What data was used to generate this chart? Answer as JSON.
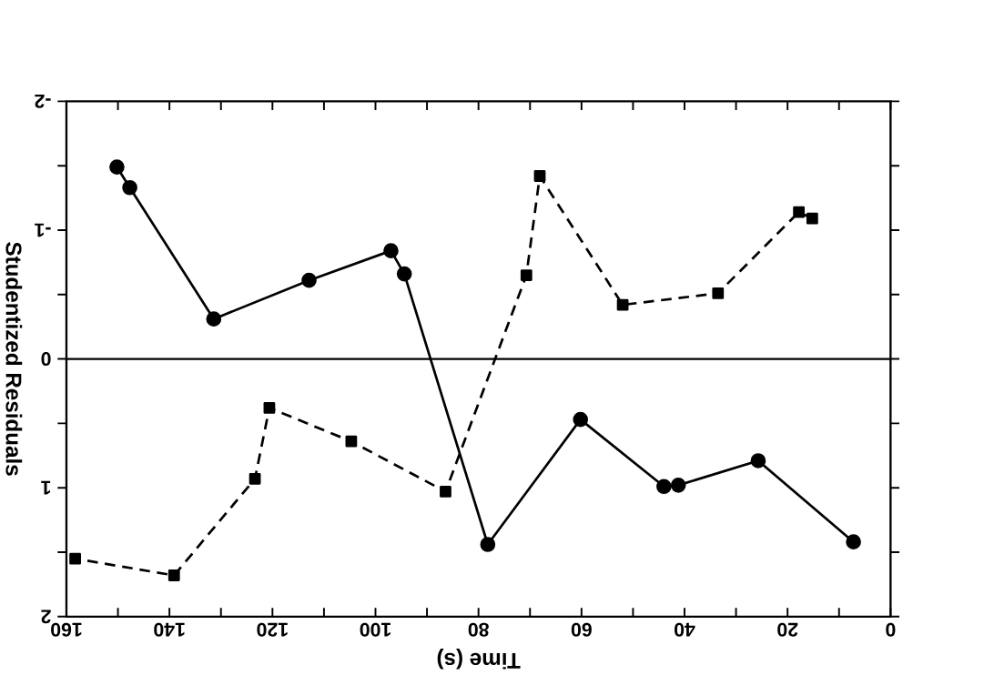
{
  "chart_data": {
    "type": "line",
    "xlabel": "Time (s)",
    "ylabel": "Studentized Residuals",
    "xlim": [
      160,
      0
    ],
    "xticks": [
      0,
      20,
      40,
      60,
      80,
      100,
      120,
      140,
      160
    ],
    "ylim": [
      2,
      -2
    ],
    "yticks": [
      -2,
      -1,
      0,
      1,
      2
    ],
    "grid": false,
    "ref_lines": [
      {
        "axis": "y",
        "value": 0,
        "color": "#000000",
        "line_style": "solid"
      }
    ],
    "series": [
      {
        "color": "#000000",
        "marker": "circle",
        "line_style": "solid",
        "x": [
          7.2,
          25.7,
          41.2,
          44.0,
          60.2,
          78.2,
          94.4,
          97.0,
          112.9,
          131.4,
          147.7,
          150.2
        ],
        "values": [
          1.42,
          0.79,
          0.98,
          0.99,
          0.47,
          1.44,
          -0.66,
          -0.84,
          -0.61,
          -0.31,
          -1.33,
          -1.49
        ]
      },
      {
        "color": "#000000",
        "marker": "square",
        "line_style": "dashed",
        "x": [
          15.2,
          17.8,
          33.5,
          52.0,
          68.1,
          70.7,
          86.4,
          104.7,
          120.6,
          123.4,
          139.1,
          158.3
        ],
        "values": [
          -1.09,
          -1.14,
          -0.51,
          -0.42,
          -1.42,
          -0.65,
          1.03,
          0.64,
          0.38,
          0.93,
          1.68,
          1.55
        ]
      }
    ]
  }
}
